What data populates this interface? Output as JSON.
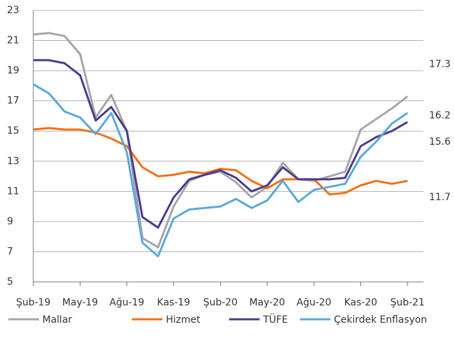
{
  "chart_data": {
    "type": "line",
    "categories": [
      "Şub-19",
      null,
      null,
      "May-19",
      null,
      null,
      "Ağu-19",
      null,
      null,
      "Kas-19",
      null,
      null,
      "Şub-20",
      null,
      null,
      "May-20",
      null,
      null,
      "Ağu-20",
      null,
      null,
      "Kas-20",
      null,
      null,
      "Şub-21"
    ],
    "series": [
      {
        "name": "Mallar",
        "color": "#a6a6a6",
        "values": [
          21.4,
          21.5,
          21.3,
          20.1,
          15.9,
          17.4,
          15.0,
          7.9,
          7.3,
          10.0,
          11.7,
          12.1,
          12.3,
          11.6,
          10.6,
          11.3,
          12.9,
          11.8,
          11.7,
          12.0,
          12.3,
          15.1,
          15.8,
          16.5,
          17.3
        ]
      },
      {
        "name": "Hizmet",
        "color": "#f36f12",
        "values": [
          15.1,
          15.2,
          15.1,
          15.1,
          14.9,
          14.5,
          14.0,
          12.6,
          12.0,
          12.1,
          12.3,
          12.2,
          12.5,
          12.4,
          11.7,
          11.2,
          11.8,
          11.8,
          11.8,
          10.8,
          10.9,
          11.4,
          11.7,
          11.5,
          11.7
        ]
      },
      {
        "name": "TÜFE",
        "color": "#4b3b8c",
        "values": [
          19.7,
          19.7,
          19.5,
          18.7,
          15.7,
          16.6,
          15.0,
          9.3,
          8.6,
          10.6,
          11.8,
          12.1,
          12.4,
          11.9,
          11.0,
          11.4,
          12.6,
          11.8,
          11.8,
          11.8,
          11.9,
          14.0,
          14.6,
          15.0,
          15.6
        ]
      },
      {
        "name": "Çekirdek Enflasyon",
        "color": "#5aa8dc",
        "values": [
          18.1,
          17.5,
          16.3,
          15.9,
          14.8,
          16.2,
          13.6,
          7.6,
          6.7,
          9.2,
          9.8,
          9.9,
          10.0,
          10.5,
          9.9,
          10.4,
          11.7,
          10.3,
          11.1,
          11.3,
          11.5,
          13.3,
          14.3,
          15.5,
          16.2
        ]
      }
    ],
    "ylim": [
      5,
      23
    ],
    "yticks": [
      5,
      7,
      9,
      11,
      13,
      15,
      17,
      19,
      21,
      23
    ],
    "grid": true,
    "legend": "bottom"
  }
}
